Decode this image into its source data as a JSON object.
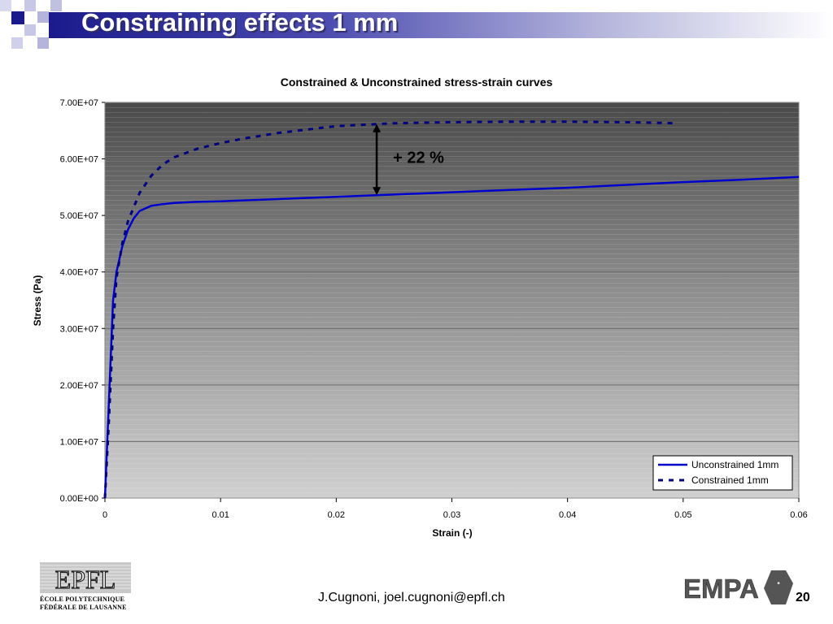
{
  "slide": {
    "title": "Constraining effects 1 mm",
    "footer": "J.Cugnoni, joel.cugnoni@epfl.ch",
    "page_number": "20"
  },
  "logos": {
    "epfl_line1": "ÉCOLE  POLYTECHNIQUE",
    "epfl_line2": "FÉDÉRALE DE LAUSANNE",
    "empa_text": "EMPA"
  },
  "colors": {
    "title_bar_dark": "#1a1a8c",
    "series_color": "#0000cc",
    "constrained_color": "#000080",
    "deco_dark": "#1a1a8c",
    "deco_light": "#b4b4dc"
  },
  "chart_data": {
    "type": "line",
    "title": "Constrained & Unconstrained stress-strain curves",
    "xlabel": "Strain (-)",
    "ylabel": "Stress (Pa)",
    "xlim": [
      0,
      0.06
    ],
    "ylim": [
      0,
      70000000
    ],
    "x_ticks": [
      "0",
      "0.01",
      "0.02",
      "0.03",
      "0.04",
      "0.05",
      "0.06"
    ],
    "y_ticks": [
      "0.00E+00",
      "1.00E+07",
      "2.00E+07",
      "3.00E+07",
      "4.00E+07",
      "5.00E+07",
      "6.00E+07",
      "7.00E+07"
    ],
    "legend_position": "bottom-right",
    "annotation": "+ 22 %",
    "annotation_x": 0.0235,
    "series": [
      {
        "name": "Unconstrained 1mm",
        "style": "solid",
        "x": [
          0,
          0.0003,
          0.0007,
          0.001,
          0.0015,
          0.002,
          0.0025,
          0.003,
          0.004,
          0.005,
          0.006,
          0.008,
          0.01,
          0.015,
          0.02,
          0.025,
          0.03,
          0.035,
          0.04,
          0.045,
          0.05,
          0.055,
          0.06
        ],
        "y": [
          0,
          15000000,
          35000000,
          40000000,
          44500000,
          47500000,
          49500000,
          50800000,
          51700000,
          52000000,
          52200000,
          52400000,
          52500000,
          52900000,
          53300000,
          53700000,
          54100000,
          54500000,
          54900000,
          55400000,
          55900000,
          56300000,
          56800000
        ]
      },
      {
        "name": "Constrained 1mm",
        "style": "dashed",
        "x": [
          0,
          0.0003,
          0.0007,
          0.001,
          0.0015,
          0.002,
          0.003,
          0.004,
          0.005,
          0.006,
          0.008,
          0.01,
          0.012,
          0.015,
          0.02,
          0.025,
          0.03,
          0.035,
          0.04,
          0.045,
          0.0495
        ],
        "y": [
          0,
          12000000,
          30000000,
          39000000,
          45000000,
          49000000,
          54000000,
          57000000,
          59000000,
          60300000,
          61800000,
          62800000,
          63600000,
          64600000,
          65800000,
          66300000,
          66500000,
          66600000,
          66600000,
          66500000,
          66300000
        ]
      }
    ]
  }
}
